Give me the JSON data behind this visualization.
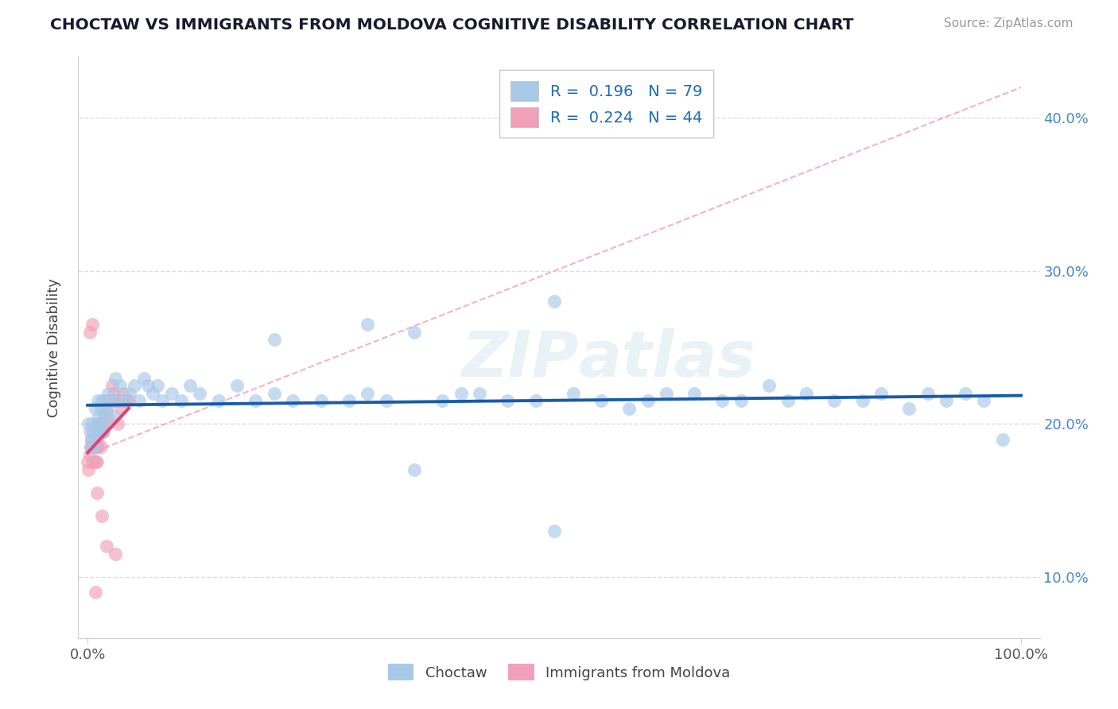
{
  "title": "CHOCTAW VS IMMIGRANTS FROM MOLDOVA COGNITIVE DISABILITY CORRELATION CHART",
  "source": "Source: ZipAtlas.com",
  "ylabel": "Cognitive Disability",
  "watermark": "ZIPAtlas",
  "blue_color": "#A8C8E8",
  "pink_color": "#F0A0B8",
  "blue_line_color": "#1A5BA8",
  "pink_line_color": "#E04070",
  "dash_line_color": "#F0A0B8",
  "xlim": [
    -0.01,
    1.02
  ],
  "ylim": [
    0.06,
    0.44
  ],
  "yticks": [
    0.1,
    0.2,
    0.3,
    0.4
  ],
  "ytick_labels_right": [
    "10.0%",
    "20.0%",
    "30.0%",
    "40.0%"
  ],
  "choctaw_x": [
    0.001,
    0.002,
    0.003,
    0.004,
    0.005,
    0.006,
    0.007,
    0.008,
    0.009,
    0.01,
    0.011,
    0.012,
    0.013,
    0.014,
    0.015,
    0.016,
    0.017,
    0.018,
    0.019,
    0.02,
    0.022,
    0.025,
    0.028,
    0.03,
    0.032,
    0.035,
    0.04,
    0.045,
    0.05,
    0.055,
    0.06,
    0.065,
    0.07,
    0.075,
    0.08,
    0.09,
    0.1,
    0.11,
    0.12,
    0.14,
    0.16,
    0.18,
    0.2,
    0.22,
    0.25,
    0.28,
    0.3,
    0.32,
    0.35,
    0.38,
    0.4,
    0.42,
    0.45,
    0.48,
    0.5,
    0.52,
    0.55,
    0.58,
    0.6,
    0.62,
    0.65,
    0.68,
    0.7,
    0.73,
    0.75,
    0.77,
    0.8,
    0.83,
    0.85,
    0.88,
    0.9,
    0.92,
    0.94,
    0.96,
    0.98,
    0.35,
    0.5,
    0.3,
    0.2
  ],
  "choctaw_y": [
    0.2,
    0.195,
    0.185,
    0.19,
    0.2,
    0.195,
    0.185,
    0.21,
    0.195,
    0.2,
    0.215,
    0.205,
    0.195,
    0.21,
    0.215,
    0.2,
    0.195,
    0.215,
    0.205,
    0.21,
    0.22,
    0.215,
    0.205,
    0.23,
    0.215,
    0.225,
    0.215,
    0.22,
    0.225,
    0.215,
    0.23,
    0.225,
    0.22,
    0.225,
    0.215,
    0.22,
    0.215,
    0.225,
    0.22,
    0.215,
    0.225,
    0.215,
    0.22,
    0.215,
    0.215,
    0.215,
    0.22,
    0.215,
    0.17,
    0.215,
    0.22,
    0.22,
    0.215,
    0.215,
    0.13,
    0.22,
    0.215,
    0.21,
    0.215,
    0.22,
    0.22,
    0.215,
    0.215,
    0.225,
    0.215,
    0.22,
    0.215,
    0.215,
    0.22,
    0.21,
    0.22,
    0.215,
    0.22,
    0.215,
    0.19,
    0.26,
    0.28,
    0.265,
    0.255
  ],
  "moldova_x": [
    0.0,
    0.001,
    0.002,
    0.003,
    0.004,
    0.005,
    0.006,
    0.006,
    0.007,
    0.008,
    0.008,
    0.009,
    0.01,
    0.01,
    0.011,
    0.012,
    0.013,
    0.014,
    0.015,
    0.016,
    0.017,
    0.018,
    0.019,
    0.02,
    0.021,
    0.022,
    0.024,
    0.026,
    0.028,
    0.03,
    0.032,
    0.034,
    0.036,
    0.038,
    0.04,
    0.042,
    0.044,
    0.002,
    0.005,
    0.01,
    0.015,
    0.02,
    0.008,
    0.03
  ],
  "moldova_y": [
    0.175,
    0.17,
    0.18,
    0.185,
    0.19,
    0.185,
    0.175,
    0.195,
    0.185,
    0.195,
    0.175,
    0.185,
    0.19,
    0.175,
    0.185,
    0.2,
    0.195,
    0.185,
    0.195,
    0.2,
    0.195,
    0.205,
    0.2,
    0.21,
    0.205,
    0.215,
    0.215,
    0.225,
    0.22,
    0.215,
    0.2,
    0.215,
    0.21,
    0.22,
    0.215,
    0.215,
    0.215,
    0.26,
    0.265,
    0.155,
    0.14,
    0.12,
    0.09,
    0.115
  ]
}
